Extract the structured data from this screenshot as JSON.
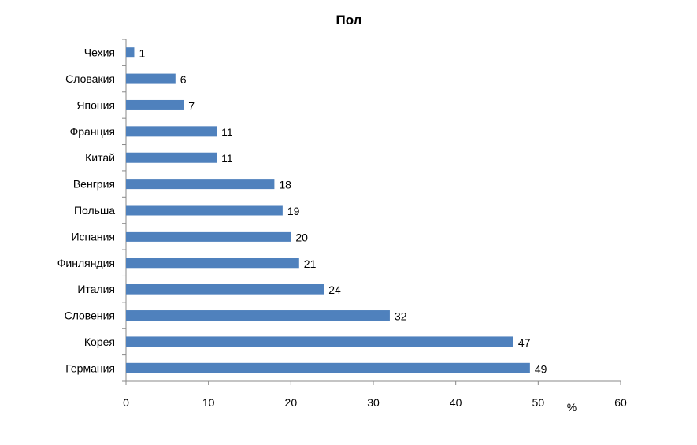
{
  "chart_data": {
    "type": "bar",
    "orientation": "horizontal",
    "title": "Пол",
    "categories": [
      "Германия",
      "Корея",
      "Словения",
      "Италия",
      "Финляндия",
      "Испания",
      "Польша",
      "Венгрия",
      "Китай",
      "Франция",
      "Япония",
      "Словакия",
      "Чехия"
    ],
    "values": [
      49,
      47,
      32,
      24,
      21,
      20,
      19,
      18,
      11,
      11,
      7,
      6,
      1
    ],
    "xlabel": "%",
    "ylabel": "",
    "xlim": [
      0,
      60
    ],
    "xticks": [
      0,
      10,
      20,
      30,
      40,
      50,
      60
    ],
    "grid": false,
    "legend": "none",
    "bar_color": "#4F81BD",
    "data_labels": true
  }
}
